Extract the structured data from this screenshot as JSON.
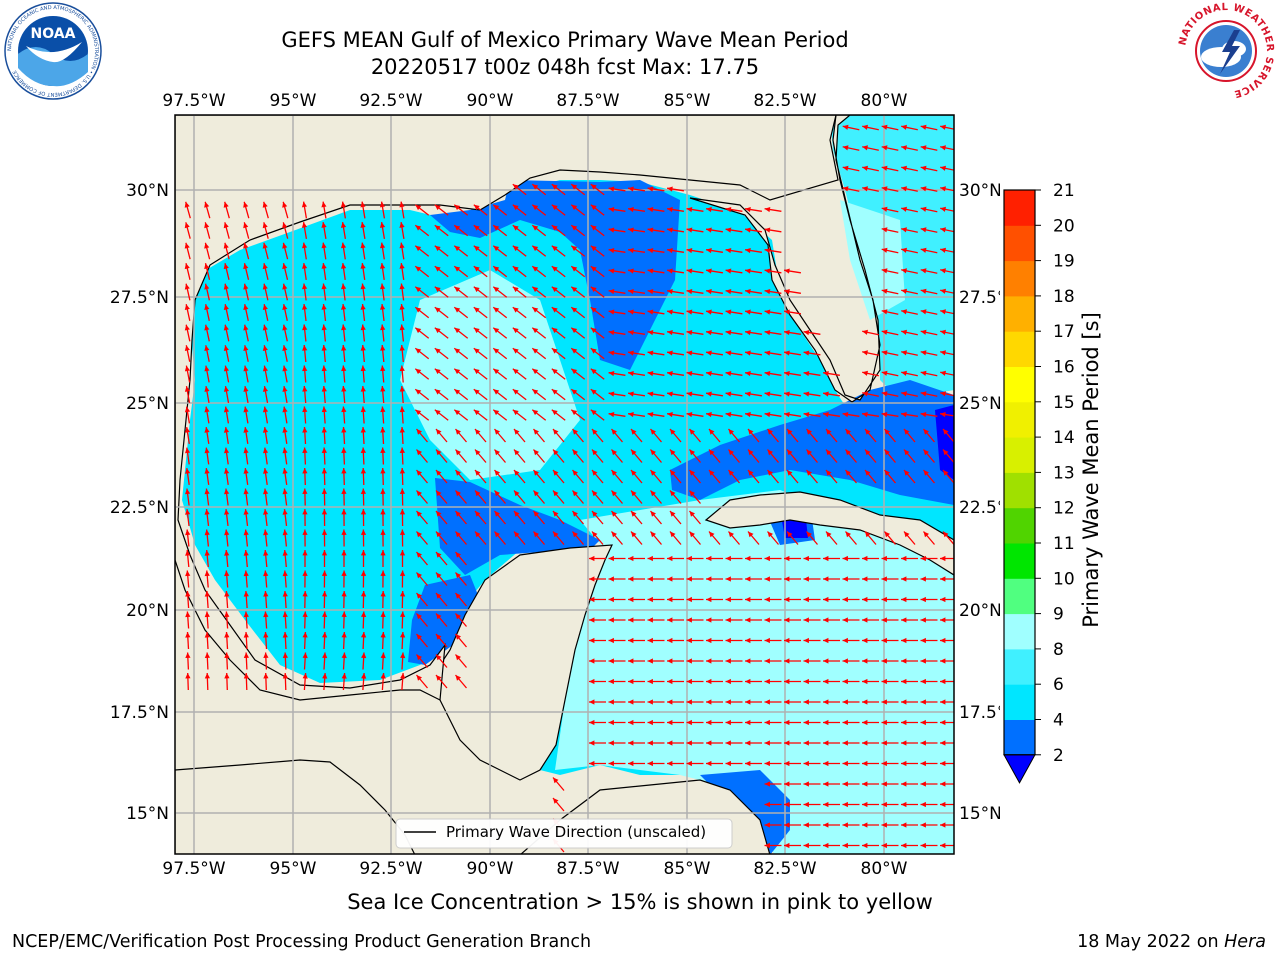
{
  "header": {
    "title": "GEFS MEAN Gulf of Mexico Primary Wave Mean Period",
    "subtitle": "20220517 t00z 048h fcst   Max: 17.75"
  },
  "logos": {
    "left": "NOAA",
    "left_ring": "NATIONAL OCEANIC AND ATMOSPHERIC ADMINISTRATION • U.S. DEPARTMENT OF COMMERCE",
    "right_ring": "NATIONAL WEATHER SERVICE"
  },
  "map": {
    "lon_labels": [
      "97.5°W",
      "95°W",
      "92.5°W",
      "90°W",
      "87.5°W",
      "85°W",
      "82.5°W",
      "80°W"
    ],
    "lat_labels": [
      "30°N",
      "27.5°N",
      "25°N",
      "22.5°N",
      "20°N",
      "17.5°N",
      "15°N"
    ],
    "extent": {
      "lon": [
        -98,
        -78.2
      ],
      "lat": [
        14,
        31.8
      ]
    },
    "legend_label": "Primary Wave Direction (unscaled)",
    "colors": {
      "land": "#efecdc",
      "coast": "#000000",
      "grid": "#b0b0b0",
      "arrow": "#ff0000"
    }
  },
  "colorbar": {
    "label": "Primary Wave Mean Period [s]",
    "ticks": [
      "2",
      "4",
      "6",
      "8",
      "9",
      "10",
      "11",
      "12",
      "13",
      "14",
      "15",
      "16",
      "17",
      "18",
      "19",
      "20",
      "21"
    ],
    "colors": [
      "#0070ff",
      "#00e6ff",
      "#40f0ff",
      "#a0ffff",
      "#50ff80",
      "#00e600",
      "#50d400",
      "#a0e000",
      "#d8f000",
      "#f0f000",
      "#ffff00",
      "#ffd800",
      "#ffb000",
      "#ff8000",
      "#ff5000",
      "#ff2000"
    ],
    "under_color": "#0000ff"
  },
  "caption": "Sea Ice Concentration > 15% is shown in pink to yellow",
  "footer": {
    "left": "NCEP/EMC/Verification Post Processing Product Generation Branch",
    "date": "18 May 2022 on",
    "machine": "Hera"
  }
}
